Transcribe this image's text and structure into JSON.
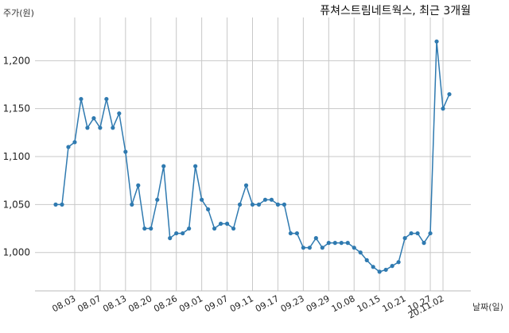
{
  "colors": {
    "series": "#2f7ab0",
    "grid": "#c8c8c8",
    "text": "#222222"
  },
  "chart_data": {
    "type": "line",
    "title": "퓨쳐스트림네트웍스, 최근 3개월",
    "xlabel": "날짜(일)",
    "ylabel": "주가(원)",
    "grid": true,
    "ylim": [
      960,
      1245
    ],
    "y_ticks": [
      1000,
      1050,
      1100,
      1150,
      1200
    ],
    "y_tick_labels": [
      "1,000",
      "1,050",
      "1,100",
      "1,150",
      "1,200"
    ],
    "x_ticks": [
      {
        "index": 3,
        "label": "08.03"
      },
      {
        "index": 7,
        "label": "08.07"
      },
      {
        "index": 11,
        "label": "08.13"
      },
      {
        "index": 15,
        "label": "08.20"
      },
      {
        "index": 19,
        "label": "08.26"
      },
      {
        "index": 23,
        "label": "09.01"
      },
      {
        "index": 27,
        "label": "09.07"
      },
      {
        "index": 31,
        "label": "09.11"
      },
      {
        "index": 35,
        "label": "09.17"
      },
      {
        "index": 39,
        "label": "09.23"
      },
      {
        "index": 43,
        "label": "09.29"
      },
      {
        "index": 47,
        "label": "10.08"
      },
      {
        "index": 51,
        "label": "10.15"
      },
      {
        "index": 55,
        "label": "10.21"
      },
      {
        "index": 59,
        "label": "10.27"
      },
      {
        "index": 61,
        "label": "20.11.02"
      }
    ],
    "series": [
      {
        "values": [
          1050,
          1050,
          1110,
          1115,
          1160,
          1130,
          1140,
          1130,
          1160,
          1130,
          1145,
          1105,
          1050,
          1070,
          1025,
          1025,
          1055,
          1090,
          1015,
          1020,
          1020,
          1025,
          1090,
          1055,
          1045,
          1025,
          1030,
          1030,
          1025,
          1050,
          1070,
          1050,
          1050,
          1055,
          1055,
          1050,
          1050,
          1020,
          1020,
          1005,
          1005,
          1015,
          1005,
          1010,
          1010,
          1010,
          1010,
          1005,
          1000,
          992,
          985,
          980,
          982,
          986,
          990,
          1015,
          1020,
          1020,
          1010,
          1020,
          1220,
          1150,
          1165
        ]
      }
    ]
  }
}
